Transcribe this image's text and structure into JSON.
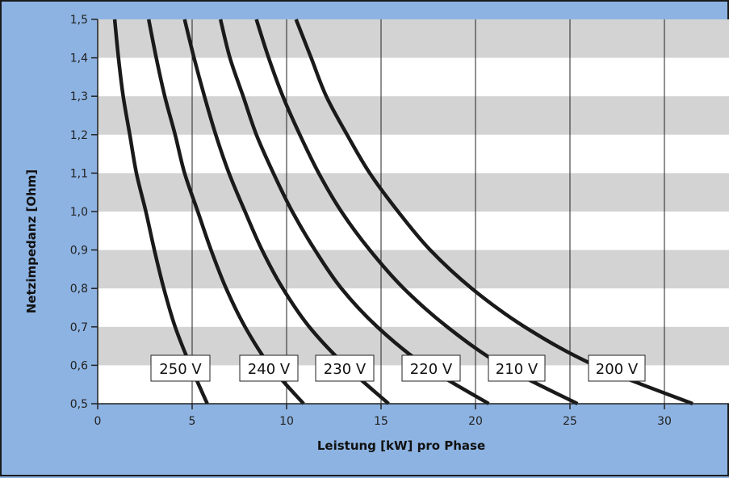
{
  "chart_data": {
    "type": "line",
    "xlabel": "Leistung [kW] pro Phase",
    "ylabel": "Netzimpedanz [Ohm]",
    "xlim": [
      0,
      33
    ],
    "ylim": [
      0.5,
      1.5
    ],
    "x_ticks": [
      "0",
      "5",
      "10",
      "15",
      "20",
      "25",
      "30"
    ],
    "y_ticks": [
      "0,5",
      "0,6",
      "0,7",
      "0,8",
      "0,9",
      "1,0",
      "1,1",
      "1,2",
      "1,3",
      "1,4",
      "1,5"
    ],
    "grid": "horizontal bands, vertical gridlines",
    "band_color": "#d3d3d3",
    "line_color": "#1a1a1a",
    "background_color": "#8db3e2",
    "series": [
      {
        "name": "250 V",
        "points": [
          [
            0.9,
            1.5
          ],
          [
            1.1,
            1.4
          ],
          [
            1.35,
            1.3
          ],
          [
            1.7,
            1.2
          ],
          [
            2.05,
            1.1
          ],
          [
            2.55,
            1.0
          ],
          [
            3.0,
            0.9
          ],
          [
            3.5,
            0.8
          ],
          [
            4.1,
            0.7
          ],
          [
            4.9,
            0.6
          ],
          [
            5.8,
            0.5
          ]
        ]
      },
      {
        "name": "240 V",
        "points": [
          [
            2.7,
            1.5
          ],
          [
            3.1,
            1.4
          ],
          [
            3.55,
            1.3
          ],
          [
            4.1,
            1.2
          ],
          [
            4.6,
            1.1
          ],
          [
            5.3,
            1.0
          ],
          [
            6.0,
            0.9
          ],
          [
            6.8,
            0.8
          ],
          [
            7.8,
            0.7
          ],
          [
            9.1,
            0.6
          ],
          [
            10.9,
            0.5
          ]
        ]
      },
      {
        "name": "230 V",
        "points": [
          [
            4.6,
            1.5
          ],
          [
            5.1,
            1.4
          ],
          [
            5.65,
            1.3
          ],
          [
            6.25,
            1.2
          ],
          [
            6.95,
            1.1
          ],
          [
            7.8,
            1.0
          ],
          [
            8.7,
            0.9
          ],
          [
            9.8,
            0.8
          ],
          [
            11.2,
            0.7
          ],
          [
            13.1,
            0.6
          ],
          [
            15.4,
            0.5
          ]
        ]
      },
      {
        "name": "220 V",
        "points": [
          [
            6.5,
            1.5
          ],
          [
            7.0,
            1.4
          ],
          [
            7.7,
            1.3
          ],
          [
            8.4,
            1.2
          ],
          [
            9.3,
            1.1
          ],
          [
            10.3,
            1.0
          ],
          [
            11.5,
            0.9
          ],
          [
            12.9,
            0.8
          ],
          [
            14.8,
            0.7
          ],
          [
            17.3,
            0.6
          ],
          [
            20.7,
            0.5
          ]
        ]
      },
      {
        "name": "210 V",
        "points": [
          [
            8.4,
            1.5
          ],
          [
            9.05,
            1.4
          ],
          [
            9.8,
            1.3
          ],
          [
            10.7,
            1.2
          ],
          [
            11.7,
            1.1
          ],
          [
            12.9,
            1.0
          ],
          [
            14.4,
            0.9
          ],
          [
            16.2,
            0.8
          ],
          [
            18.5,
            0.7
          ],
          [
            21.4,
            0.6
          ],
          [
            25.4,
            0.5
          ]
        ]
      },
      {
        "name": "200 V",
        "points": [
          [
            10.5,
            1.5
          ],
          [
            11.3,
            1.4
          ],
          [
            12.1,
            1.3
          ],
          [
            13.2,
            1.2
          ],
          [
            14.4,
            1.1
          ],
          [
            15.9,
            1.0
          ],
          [
            17.6,
            0.9
          ],
          [
            19.8,
            0.8
          ],
          [
            22.6,
            0.7
          ],
          [
            26.3,
            0.6
          ],
          [
            31.5,
            0.5
          ]
        ]
      }
    ]
  }
}
